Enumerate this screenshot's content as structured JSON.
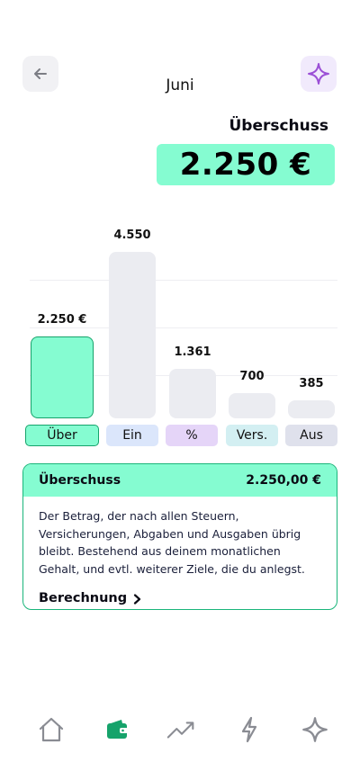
{
  "header": {
    "month": "Juni",
    "back_icon": "arrow-left-icon",
    "sparkle_icon": "sparkle-icon"
  },
  "summary": {
    "label": "Überschuss",
    "amount": "2.250 €"
  },
  "chart_data": {
    "type": "bar",
    "categories": [
      "Über",
      "Ein",
      "%",
      "Vers.",
      "Aus"
    ],
    "values": [
      2250,
      4550,
      1361,
      700,
      385
    ],
    "value_labels": [
      "2.250 €",
      "4.550",
      "1.361",
      "700",
      "385"
    ],
    "selected_category": "Über",
    "category_colors": [
      "#85fcd1",
      "#dbe6fb",
      "#e5d5f8",
      "#d3eff2",
      "#dfe1ec"
    ]
  },
  "card": {
    "title": "Überschuss",
    "amount": "2.250,00 €",
    "description": "Der Betrag, der nach allen Steuern, Versicherungen, Abgaben und Ausgaben übrig bleibt. Bestehend aus deinem monatlichen Gehalt, und evtl. weiterer Ziele, die du anlegst.",
    "link_label": "Berechnung"
  },
  "nav": {
    "items": [
      {
        "icon": "home-icon",
        "active": false
      },
      {
        "icon": "wallet-icon",
        "active": true
      },
      {
        "icon": "trend-up-icon",
        "active": false
      },
      {
        "icon": "lightning-icon",
        "active": false
      },
      {
        "icon": "sparkle-icon",
        "active": false
      }
    ],
    "active_color": "#16a36b",
    "inactive_color": "#8a8c93"
  }
}
